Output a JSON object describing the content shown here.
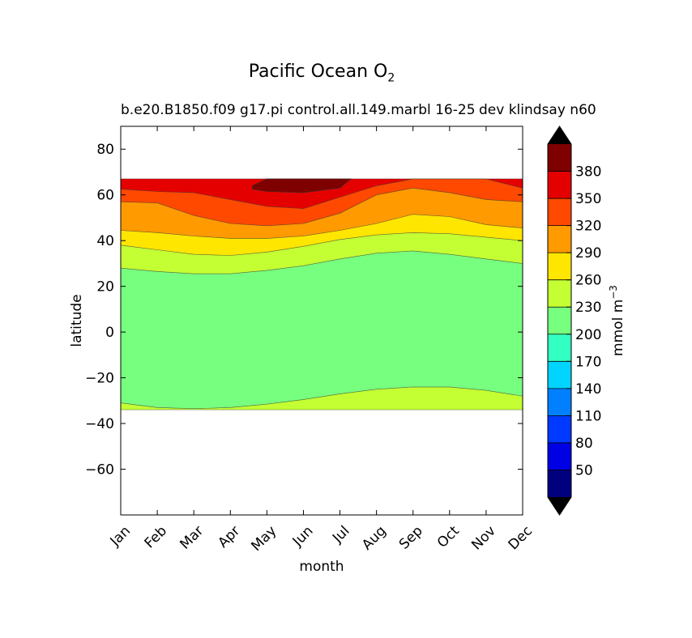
{
  "chart_data": {
    "type": "heatmap",
    "title": "Pacific Ocean O",
    "title_subscript": "2",
    "subtitle_left": "b.e20.B1850.f09 g17.pi control.all.149.marbl 16-25",
    "subtitle_right": "dev klindsay n60",
    "xlabel": "month",
    "ylabel": "latitude",
    "x_categories": [
      "Jan",
      "Feb",
      "Mar",
      "Apr",
      "May",
      "Jun",
      "Jul",
      "Aug",
      "Sep",
      "Oct",
      "Nov",
      "Dec"
    ],
    "xlim": [
      1,
      12
    ],
    "ylim": [
      -80,
      90
    ],
    "y_ticks": [
      -60,
      -40,
      -20,
      0,
      20,
      40,
      60,
      80
    ],
    "data_lat_range": [
      -34,
      67
    ],
    "colorbar": {
      "label": "mmol m",
      "label_superscript": "-3",
      "levels": [
        20,
        50,
        80,
        110,
        140,
        170,
        200,
        230,
        260,
        290,
        320,
        350,
        380,
        410
      ],
      "tick_labels": [
        "50",
        "80",
        "110",
        "140",
        "170",
        "200",
        "230",
        "260",
        "290",
        "320",
        "350",
        "380"
      ],
      "colors": [
        "#00007f",
        "#0000e5",
        "#0039ff",
        "#0080ff",
        "#00d4ff",
        "#33ffc3",
        "#77ff7f",
        "#c3ff33",
        "#ffe600",
        "#ff9a00",
        "#ff4800",
        "#e50000",
        "#7f0000"
      ],
      "extend": "both",
      "over_color": "#000000",
      "under_color": "#000000"
    },
    "contour_bands": [
      {
        "level_range": [
          230,
          260
        ],
        "color": "#c3ff33",
        "lat_low": [
          -34,
          -34,
          -34,
          -34,
          -34,
          -34,
          -34,
          -34,
          -34,
          -34,
          -34,
          -34
        ],
        "lat_high": [
          -31,
          -33,
          -33.5,
          -33,
          -31.5,
          -29.5,
          -27,
          -25,
          -24,
          -24,
          -25.5,
          -28
        ]
      },
      {
        "level_range": [
          200,
          230
        ],
        "color": "#77ff7f",
        "lat_low": [
          -31,
          -33,
          -33.5,
          -33,
          -31.5,
          -29.5,
          -27,
          -25,
          -24,
          -24,
          -25.5,
          -28
        ],
        "lat_high": [
          28,
          26.5,
          25.5,
          25.5,
          27,
          29,
          32,
          34.5,
          35.5,
          34,
          32,
          30
        ]
      },
      {
        "level_range": [
          260,
          290
        ],
        "color": "#c3ff33",
        "lat_low": [
          28,
          26.5,
          25.5,
          25.5,
          27,
          29,
          32,
          34.5,
          35.5,
          34,
          32,
          30
        ],
        "lat_high": [
          38,
          36,
          34,
          33.5,
          35,
          37.5,
          40.5,
          42.5,
          43.5,
          43,
          41.5,
          40
        ]
      },
      {
        "level_range": [
          290,
          320
        ],
        "color": "#ffe600",
        "lat_low": [
          38,
          36,
          34,
          33.5,
          35,
          37.5,
          40.5,
          42.5,
          43.5,
          43,
          41.5,
          40
        ],
        "lat_high": [
          44.5,
          43.5,
          42,
          41,
          41,
          42,
          44.5,
          47.5,
          51.5,
          50.5,
          47,
          45.5
        ]
      },
      {
        "level_range": [
          320,
          350
        ],
        "color": "#ff9a00",
        "lat_low": [
          44.5,
          43.5,
          42,
          41,
          41,
          42,
          44.5,
          47.5,
          51.5,
          50.5,
          47,
          45.5
        ],
        "lat_high": [
          57,
          56.5,
          51,
          47.5,
          46.5,
          47.5,
          52,
          60,
          63,
          61,
          58,
          57
        ]
      },
      {
        "level_range": [
          350,
          380
        ],
        "color": "#ff4800",
        "lat_low": [
          57,
          56.5,
          51,
          47.5,
          46.5,
          47.5,
          52,
          60,
          63,
          61,
          58,
          57
        ],
        "lat_high": [
          62.5,
          61.5,
          61,
          58,
          55,
          54,
          59,
          64,
          67,
          67,
          67,
          63
        ]
      },
      {
        "level_range": [
          380,
          410
        ],
        "color": "#e50000",
        "lat_low": [
          62.5,
          61.5,
          61,
          58,
          55,
          54,
          59,
          64,
          67,
          67,
          67,
          63
        ],
        "lat_high": [
          67,
          67,
          67,
          67,
          67,
          67,
          67,
          67,
          67,
          67,
          67,
          67
        ]
      }
    ],
    "max_region": {
      "color": "#7f0000",
      "x": [
        4.6,
        5.0,
        6.0,
        6.6,
        7.3,
        7.0,
        6.0,
        5.0,
        4.6
      ],
      "y": [
        64,
        67,
        67,
        67,
        67,
        63,
        61,
        61.5,
        62.5
      ]
    },
    "grid": false
  }
}
